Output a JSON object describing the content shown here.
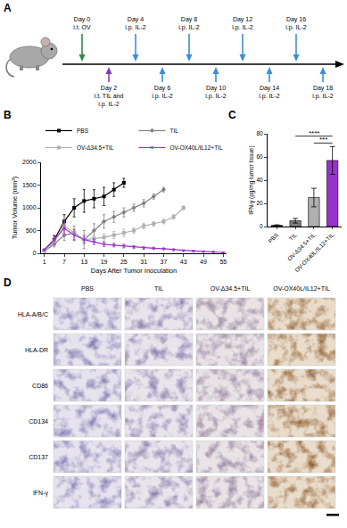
{
  "panel_labels": [
    "A",
    "B",
    "C",
    "D"
  ],
  "timeline": {
    "events": [
      {
        "day": "Day 0",
        "lines": [
          "i.t. OV"
        ],
        "side": "above",
        "color": "#2e8b3e"
      },
      {
        "day": "Day 2",
        "lines": [
          "i.t. TIL and",
          "i.p. IL-2"
        ],
        "side": "below",
        "color": "#7b3fb5"
      },
      {
        "day": "Day 4",
        "lines": [
          "i.p. IL-2"
        ],
        "side": "above",
        "color": "#3a8fd9"
      },
      {
        "day": "Day 6",
        "lines": [
          "i.p. IL-2"
        ],
        "side": "below",
        "color": "#3a8fd9"
      },
      {
        "day": "Day 8",
        "lines": [
          "i.p. IL-2"
        ],
        "side": "above",
        "color": "#3a8fd9"
      },
      {
        "day": "Day 10",
        "lines": [
          "i.p. IL-2"
        ],
        "side": "below",
        "color": "#3a8fd9"
      },
      {
        "day": "Day 12",
        "lines": [
          "i.p. IL-2"
        ],
        "side": "above",
        "color": "#3a8fd9"
      },
      {
        "day": "Day 14",
        "lines": [
          "i.p. IL-2"
        ],
        "side": "below",
        "color": "#3a8fd9"
      },
      {
        "day": "Day 16",
        "lines": [
          "i.p. IL-2"
        ],
        "side": "above",
        "color": "#3a8fd9"
      },
      {
        "day": "Day 18",
        "lines": [
          "i.p. IL-2"
        ],
        "side": "below",
        "color": "#3a8fd9"
      }
    ]
  },
  "chart_data": [
    {
      "type": "line",
      "x_title": "Days After Tumor Inoculation",
      "y_title": "Tumor Volume (mm³)",
      "xlim": [
        0,
        56
      ],
      "xticks": [
        1,
        7,
        13,
        19,
        25,
        31,
        37,
        43,
        49,
        55
      ],
      "ylim": [
        0,
        2000
      ],
      "yticks": [
        0,
        500,
        1000,
        1500,
        2000
      ],
      "grid": false,
      "legend": "top",
      "series": [
        {
          "name": "PBS",
          "color": "#000000",
          "marker": "square",
          "x": [
            1,
            4,
            7,
            10,
            13,
            16,
            19,
            22,
            25
          ],
          "values": [
            60,
            300,
            700,
            1000,
            1150,
            1200,
            1250,
            1400,
            1550
          ],
          "errors": [
            20,
            80,
            150,
            200,
            250,
            200,
            200,
            150,
            100
          ]
        },
        {
          "name": "TIL",
          "color": "#808080",
          "marker": "diamond",
          "x": [
            1,
            4,
            7,
            10,
            13,
            16,
            19,
            22,
            25,
            28,
            31,
            34,
            37
          ],
          "values": [
            50,
            200,
            400,
            450,
            300,
            500,
            700,
            800,
            900,
            1000,
            1100,
            1250,
            1400
          ],
          "errors": [
            15,
            60,
            120,
            150,
            200,
            150,
            150,
            120,
            100,
            80,
            80,
            60,
            50
          ]
        },
        {
          "name": "OV-Δ34.5+TIL",
          "color": "#b0b0b0",
          "marker": "square",
          "x": [
            1,
            4,
            7,
            10,
            13,
            16,
            19,
            22,
            25,
            28,
            31,
            34,
            37,
            40,
            43
          ],
          "values": [
            50,
            250,
            600,
            450,
            300,
            320,
            350,
            400,
            450,
            500,
            600,
            650,
            700,
            800,
            1000
          ],
          "errors": [
            15,
            80,
            200,
            150,
            100,
            80,
            80,
            80,
            80,
            60,
            60,
            50,
            50,
            50,
            40
          ]
        },
        {
          "name": "OV-OX40L/IL12+TIL",
          "color": "#9932cc",
          "marker": "triangle-down",
          "x": [
            1,
            4,
            7,
            10,
            13,
            16,
            19,
            22,
            25,
            28,
            31,
            34,
            37,
            40,
            43,
            46,
            49,
            52,
            55
          ],
          "values": [
            80,
            300,
            550,
            400,
            300,
            250,
            200,
            180,
            160,
            140,
            120,
            110,
            100,
            80,
            60,
            50,
            40,
            30,
            20
          ],
          "errors": [
            20,
            100,
            150,
            120,
            80,
            60,
            50,
            40,
            40,
            30,
            30,
            25,
            20,
            20,
            15,
            15,
            10,
            10,
            10
          ]
        }
      ]
    },
    {
      "type": "bar",
      "y_title": "IFN-γ (pg/mg tumor tissue)",
      "categories": [
        "PBS",
        "TIL",
        "OV-Δ34.5+TIL",
        "OV-OX40L/IL12+TIL"
      ],
      "values": [
        1,
        5,
        25,
        57
      ],
      "errors": [
        0.5,
        2,
        8,
        12
      ],
      "colors": [
        "#000000",
        "#808080",
        "#b0b0b0",
        "#9932cc"
      ],
      "ylim": [
        0,
        80
      ],
      "yticks": [
        0,
        20,
        40,
        60,
        80
      ],
      "grid": false,
      "annotations": [
        {
          "text": "****",
          "from": "TIL",
          "to": "OV-OX40L/IL12+TIL",
          "y": 78
        },
        {
          "text": "***",
          "from": "OV-Δ34.5+TIL",
          "to": "OV-OX40L/IL12+TIL",
          "y": 72
        }
      ]
    }
  ],
  "ihc": {
    "columns": [
      "PBS",
      "TIL",
      "OV-Δ34.5+TIL",
      "OV-OX40L/IL12+TIL"
    ],
    "rows": [
      "HLA-A/B/C",
      "HLA-DR",
      "CD86",
      "CD134",
      "CD137",
      "IFN-γ"
    ]
  }
}
